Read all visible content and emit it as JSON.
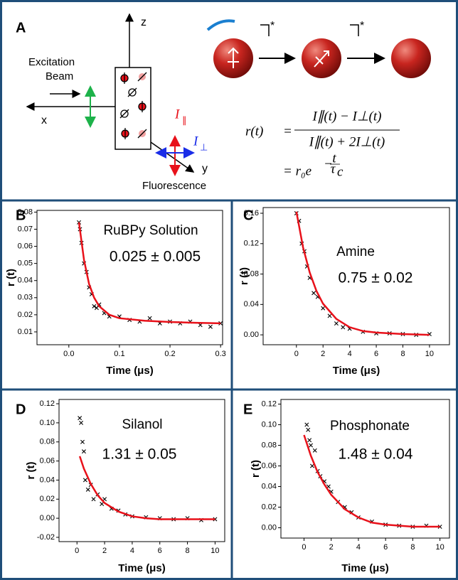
{
  "panel_a": {
    "panel_label": "A",
    "excitation": [
      "Excitation",
      "Beam"
    ],
    "axis_x": "x",
    "axis_y": "y",
    "axis_z": "z",
    "fluorescence": "Fluorescence",
    "i_parallel": {
      "symbol": "I",
      "sub": "∥"
    },
    "i_perp": {
      "symbol": "I",
      "sub": "⊥"
    },
    "stars": [
      "*",
      "*"
    ],
    "equation": {
      "lhs": "r(t)",
      "eq1": "=",
      "numerator": "I∥(t) − I⊥(t)",
      "denominator": "I∥(t) + 2I⊥(t)",
      "rhs": "= r₀e",
      "exp_sign": "−",
      "exp_num": "t",
      "exp_den": "τ",
      "exp_den_sub": "c"
    }
  },
  "chart_data": [
    {
      "type": "scatter",
      "panel_label": "B",
      "annotation": "RuBPy Solution",
      "value_text": "0.025 ± 0.005",
      "xlabel": "Time (μs)",
      "ylabel": "r (t)",
      "xlim": [
        -0.063,
        0.304
      ],
      "ylim": [
        0.0025,
        0.081
      ],
      "xticks": [
        {
          "value": 0,
          "label": "0.0"
        },
        0.1,
        0.2,
        0.3
      ],
      "yticks": [
        0.01,
        0.02,
        0.03,
        0.04,
        0.05,
        0.06,
        0.07,
        0.08
      ],
      "points": {
        "color": "#000000",
        "x": [
          0.02,
          0.022,
          0.025,
          0.03,
          0.035,
          0.04,
          0.045,
          0.05,
          0.055,
          0.06,
          0.07,
          0.08,
          0.1,
          0.12,
          0.14,
          0.16,
          0.18,
          0.2,
          0.22,
          0.24,
          0.26,
          0.28,
          0.3
        ],
        "y": [
          0.074,
          0.07,
          0.062,
          0.05,
          0.045,
          0.036,
          0.032,
          0.025,
          0.024,
          0.026,
          0.021,
          0.019,
          0.019,
          0.017,
          0.016,
          0.018,
          0.015,
          0.016,
          0.015,
          0.016,
          0.014,
          0.013,
          0.015
        ]
      },
      "fit": {
        "color": "#e8111a",
        "x": [
          0.02,
          0.03,
          0.04,
          0.05,
          0.06,
          0.08,
          0.1,
          0.15,
          0.2,
          0.25,
          0.3
        ],
        "y": [
          0.074,
          0.052,
          0.038,
          0.03,
          0.025,
          0.02,
          0.018,
          0.0165,
          0.0158,
          0.0153,
          0.015
        ]
      }
    },
    {
      "type": "scatter",
      "panel_label": "C",
      "annotation": "Amine",
      "value_text": "0.75 ± 0.02",
      "xlabel": "Time (μs)",
      "ylabel": "r (t)",
      "xlim": [
        -2.5,
        11.5
      ],
      "ylim": [
        -0.013,
        0.1675
      ],
      "xticks": [
        0,
        2,
        4,
        6,
        8,
        10
      ],
      "yticks": [
        {
          "value": 0,
          "label": "0.00"
        },
        0.04,
        0.08,
        0.12,
        0.16
      ],
      "points": {
        "color": "#000000",
        "x": [
          0,
          0.2,
          0.4,
          0.6,
          0.8,
          1,
          1.3,
          1.6,
          2,
          2.5,
          3,
          3.5,
          4,
          5,
          6,
          7,
          8,
          9,
          10
        ],
        "y": [
          0.16,
          0.15,
          0.12,
          0.11,
          0.09,
          0.075,
          0.055,
          0.05,
          0.035,
          0.025,
          0.015,
          0.01,
          0.008,
          0.004,
          0.002,
          0.002,
          0.001,
          0.0,
          0.001
        ]
      },
      "fit": {
        "color": "#e8111a",
        "x": [
          0,
          0.5,
          1,
          1.5,
          2,
          3,
          4,
          5,
          6,
          8,
          10
        ],
        "y": [
          0.162,
          0.115,
          0.082,
          0.058,
          0.041,
          0.021,
          0.01,
          0.005,
          0.003,
          0.001,
          0.0
        ]
      }
    },
    {
      "type": "scatter",
      "panel_label": "D",
      "annotation": "Silanol",
      "value_text": "1.31 ± 0.05",
      "xlabel": "Time (μs)",
      "ylabel": "r (t)",
      "xlim": [
        -1.3,
        10.7
      ],
      "ylim": [
        -0.0245,
        0.1245
      ],
      "xticks": [
        0,
        2,
        4,
        6,
        8,
        10
      ],
      "yticks": [
        -0.02,
        {
          "value": 0,
          "label": "0.00"
        },
        0.02,
        0.04,
        0.06,
        0.08,
        {
          "value": 0.1,
          "label": "0.10"
        },
        0.12
      ],
      "points": {
        "color": "#000000",
        "x": [
          0.2,
          0.3,
          0.4,
          0.5,
          0.6,
          0.8,
          1,
          1.2,
          1.5,
          1.8,
          2,
          2.5,
          3,
          3.5,
          4,
          5,
          6,
          7,
          8,
          9,
          10
        ],
        "y": [
          0.105,
          0.1,
          0.08,
          0.07,
          0.04,
          0.03,
          0.035,
          0.02,
          0.025,
          0.015,
          0.02,
          0.01,
          0.008,
          0.004,
          0.002,
          0.001,
          0.0,
          -0.001,
          0.0,
          -0.002,
          -0.001
        ]
      },
      "fit": {
        "color": "#e8111a",
        "x": [
          0.2,
          0.5,
          1,
          1.5,
          2,
          3,
          4,
          5,
          6,
          8,
          10
        ],
        "y": [
          0.065,
          0.052,
          0.036,
          0.024,
          0.016,
          0.007,
          0.002,
          0.0,
          -0.001,
          -0.001,
          -0.001
        ]
      }
    },
    {
      "type": "scatter",
      "panel_label": "E",
      "annotation": "Phosphonate",
      "value_text": "1.48 ± 0.04",
      "xlabel": "Time (μs)",
      "ylabel": "r (t)",
      "xlim": [
        -1.7,
        10.7
      ],
      "ylim": [
        -0.01,
        0.1245
      ],
      "xticks": [
        0,
        2,
        4,
        6,
        8,
        10
      ],
      "yticks": [
        {
          "value": 0,
          "label": "0.00"
        },
        0.02,
        0.04,
        0.06,
        0.08,
        {
          "value": 0.1,
          "label": "0.10"
        },
        0.12
      ],
      "points": {
        "color": "#000000",
        "x": [
          0.2,
          0.3,
          0.4,
          0.5,
          0.6,
          0.8,
          1,
          1.2,
          1.5,
          1.8,
          2,
          2.5,
          3,
          3.5,
          4,
          5,
          6,
          7,
          8,
          9,
          10
        ],
        "y": [
          0.1,
          0.095,
          0.085,
          0.08,
          0.06,
          0.075,
          0.055,
          0.05,
          0.045,
          0.04,
          0.035,
          0.025,
          0.02,
          0.015,
          0.01,
          0.006,
          0.003,
          0.002,
          0.001,
          0.002,
          0.001
        ]
      },
      "fit": {
        "color": "#e8111a",
        "x": [
          0,
          0.5,
          1,
          1.5,
          2,
          3,
          4,
          5,
          6,
          8,
          10
        ],
        "y": [
          0.09,
          0.07,
          0.054,
          0.042,
          0.032,
          0.018,
          0.01,
          0.005,
          0.003,
          0.001,
          0.001
        ]
      }
    }
  ]
}
